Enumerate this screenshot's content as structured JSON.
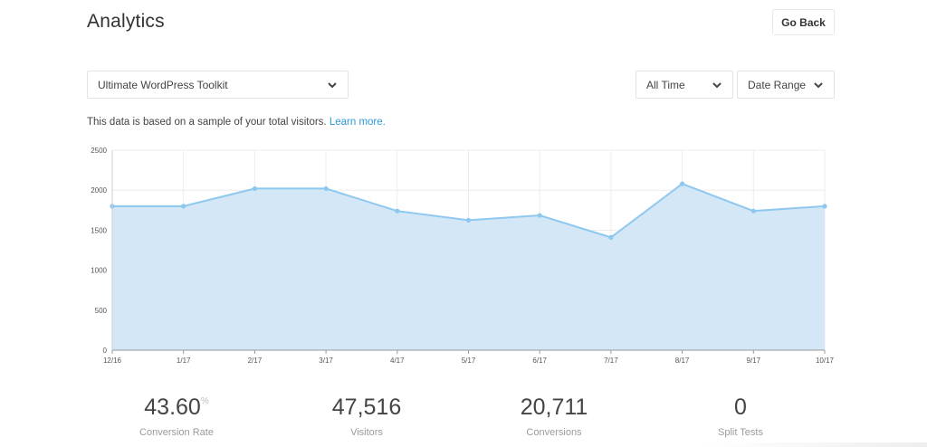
{
  "header": {
    "title": "Analytics",
    "go_back_label": "Go Back"
  },
  "filters": {
    "product": {
      "value": "Ultimate WordPress Toolkit",
      "icon": "chevron-down-icon"
    },
    "period": {
      "value": "All Time",
      "icon": "chevron-down-icon"
    },
    "range": {
      "value": "Date Range",
      "icon": "chevron-down-icon"
    }
  },
  "note": {
    "text": "This data is based on a sample of your total visitors.",
    "link": "Learn more."
  },
  "chart_data": {
    "type": "area",
    "categories": [
      "12/16",
      "1/17",
      "2/17",
      "3/17",
      "4/17",
      "5/17",
      "6/17",
      "7/17",
      "8/17",
      "9/17",
      "10/17"
    ],
    "series": [
      {
        "values": [
          1800,
          1800,
          2020,
          2020,
          1740,
          1625,
          1685,
          1410,
          2080,
          1740,
          1800
        ]
      }
    ],
    "y_ticks": [
      0,
      500,
      1000,
      1500,
      2000,
      2500
    ],
    "ylim": [
      0,
      2500
    ],
    "grid": true,
    "colors": {
      "line": "#8ec8ef",
      "fill": "#d3e7f7",
      "grid": "#ececec"
    }
  },
  "stats": [
    {
      "value": "43.60",
      "unit": "%",
      "label": "Conversion Rate"
    },
    {
      "value": "47,516",
      "unit": "",
      "label": "Visitors"
    },
    {
      "value": "20,711",
      "unit": "",
      "label": "Conversions"
    },
    {
      "value": "0",
      "unit": "",
      "label": "Split Tests"
    }
  ]
}
